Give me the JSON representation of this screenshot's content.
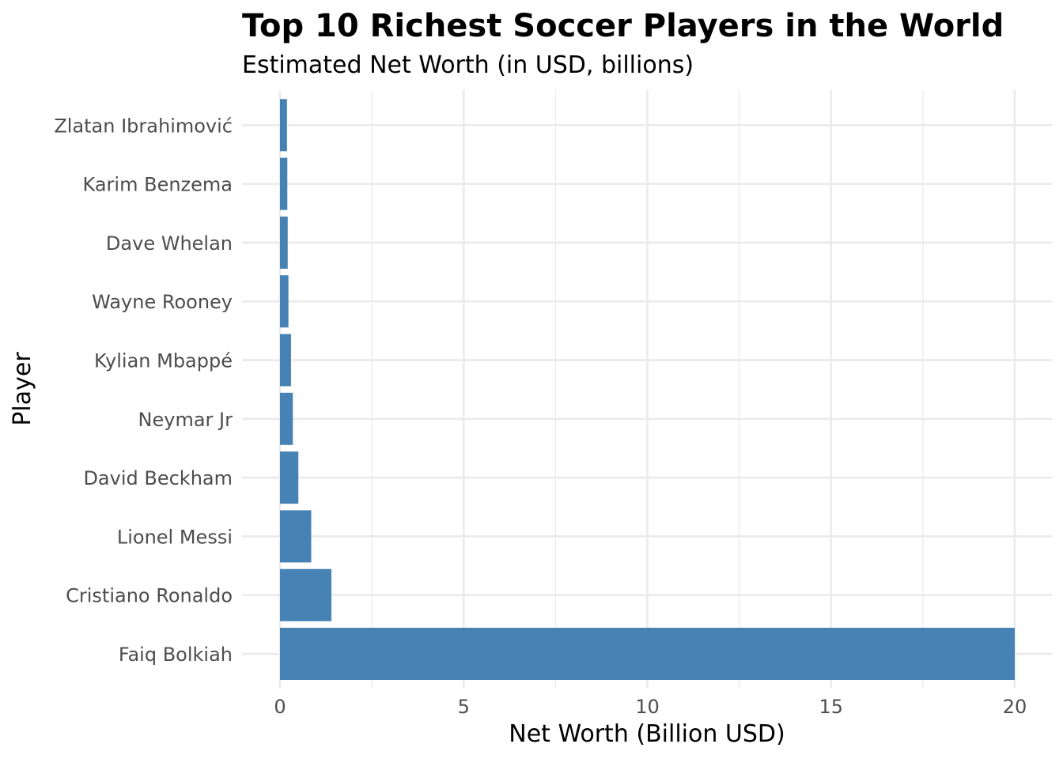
{
  "chart_data": {
    "type": "bar",
    "orientation": "horizontal",
    "title": "Top 10 Richest Soccer Players in the World",
    "subtitle": "Estimated Net Worth (in USD, billions)",
    "xlabel": "Net Worth (Billion USD)",
    "ylabel": "Player",
    "xlim": [
      0,
      20
    ],
    "x_ticks": [
      0,
      5,
      10,
      15,
      20
    ],
    "grid": true,
    "bar_color": "#4682b4",
    "categories": [
      "Faiq Bolkiah",
      "Cristiano Ronaldo",
      "Lionel Messi",
      "David Beckham",
      "Neymar Jr",
      "Kylian Mbappé",
      "Wayne Rooney",
      "Dave Whelan",
      "Karim Benzema",
      "Zlatan Ibrahimović"
    ],
    "values": [
      20,
      1.4,
      0.85,
      0.5,
      0.35,
      0.3,
      0.23,
      0.21,
      0.2,
      0.19
    ]
  }
}
